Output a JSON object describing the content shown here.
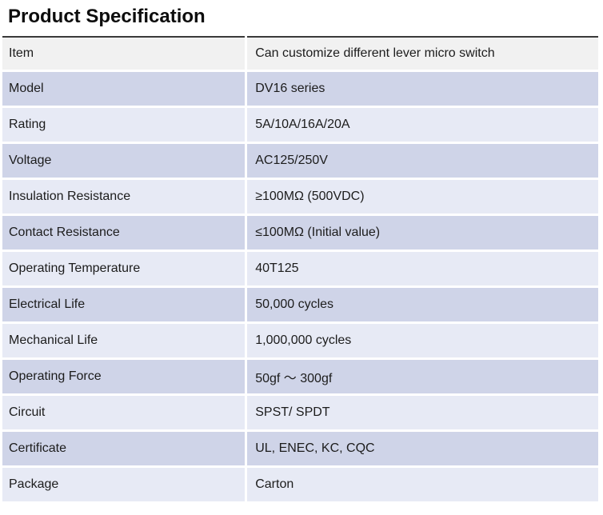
{
  "page_title": "Product Specification",
  "colors": {
    "title_text": "#0d0d0d",
    "cell_text": "#1c1c1c",
    "top_rule": "#3a3a3a",
    "header_row_bg": "#f1f1f1",
    "striped_row_dark_bg": "#cfd4e8",
    "striped_row_light_bg": "#e7eaf5",
    "page_bg": "#ffffff"
  },
  "table": {
    "rows": [
      {
        "label": "Item",
        "value": "Can customize different lever micro switch"
      },
      {
        "label": "Model",
        "value": "DV16 series"
      },
      {
        "label": "Rating",
        "value": "5A/10A/16A/20A"
      },
      {
        "label": "Voltage",
        "value": "AC125/250V"
      },
      {
        "label": "Insulation Resistance",
        "value": "≥100MΩ (500VDC)"
      },
      {
        "label": "Contact Resistance",
        "value": "≤100MΩ (Initial value)"
      },
      {
        "label": "Operating Temperature",
        "value": "40T125"
      },
      {
        "label": "Electrical Life",
        "value": "50,000 cycles"
      },
      {
        "label": "Mechanical Life",
        "value": "1,000,000 cycles"
      },
      {
        "label": "Operating Force",
        "value": "50gf ～ 300gf"
      },
      {
        "label": "Circuit",
        "value": "SPST/ SPDT"
      },
      {
        "label": "Certificate",
        "value": "UL, ENEC, KC, CQC"
      },
      {
        "label": "Package",
        "value": "Carton"
      }
    ]
  }
}
